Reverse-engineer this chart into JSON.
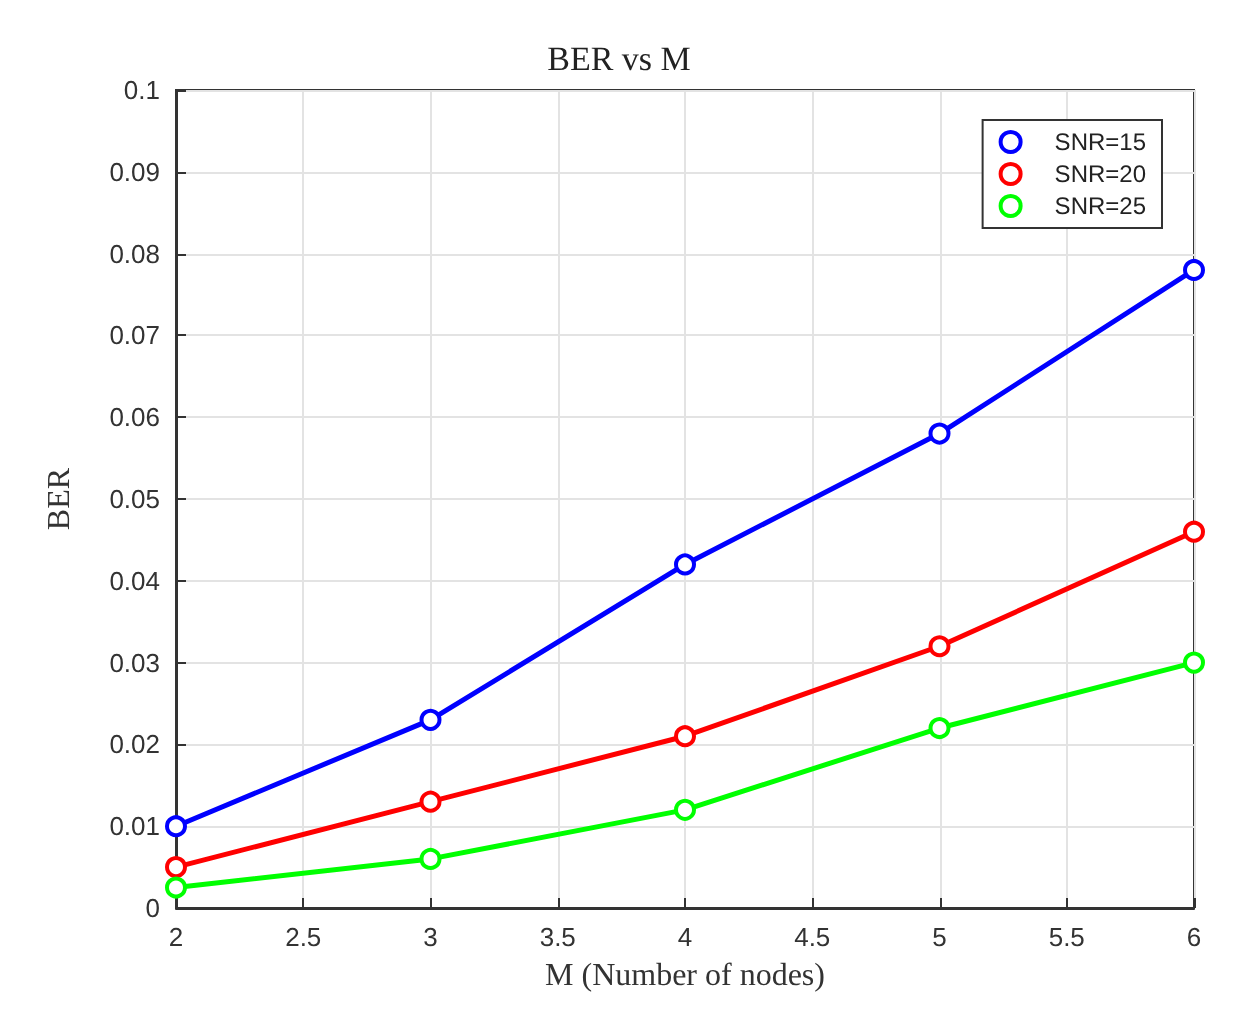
{
  "chart_data": {
    "type": "line",
    "title": "BER vs M",
    "xlabel": "M (Number of nodes)",
    "ylabel": "BER",
    "x": [
      2,
      3,
      4,
      5,
      6
    ],
    "series": [
      {
        "name": "SNR=15",
        "color": "#0000ff",
        "values": [
          0.01,
          0.023,
          0.042,
          0.058,
          0.078
        ]
      },
      {
        "name": "SNR=20",
        "color": "#ff0000",
        "values": [
          0.005,
          0.013,
          0.021,
          0.032,
          0.046
        ]
      },
      {
        "name": "SNR=25",
        "color": "#00ff00",
        "values": [
          0.0025,
          0.006,
          0.012,
          0.022,
          0.03
        ]
      }
    ],
    "xlim": [
      2,
      6
    ],
    "xticks": [
      2,
      2.5,
      3,
      3.5,
      4,
      4.5,
      5,
      5.5,
      6
    ],
    "ylim": [
      0,
      0.1
    ],
    "yticks": [
      0,
      0.01,
      0.02,
      0.03,
      0.04,
      0.05,
      0.06,
      0.07,
      0.08,
      0.09,
      0.1
    ],
    "grid": true,
    "legend": "top right",
    "marker": "circle",
    "line_style": "solid"
  }
}
